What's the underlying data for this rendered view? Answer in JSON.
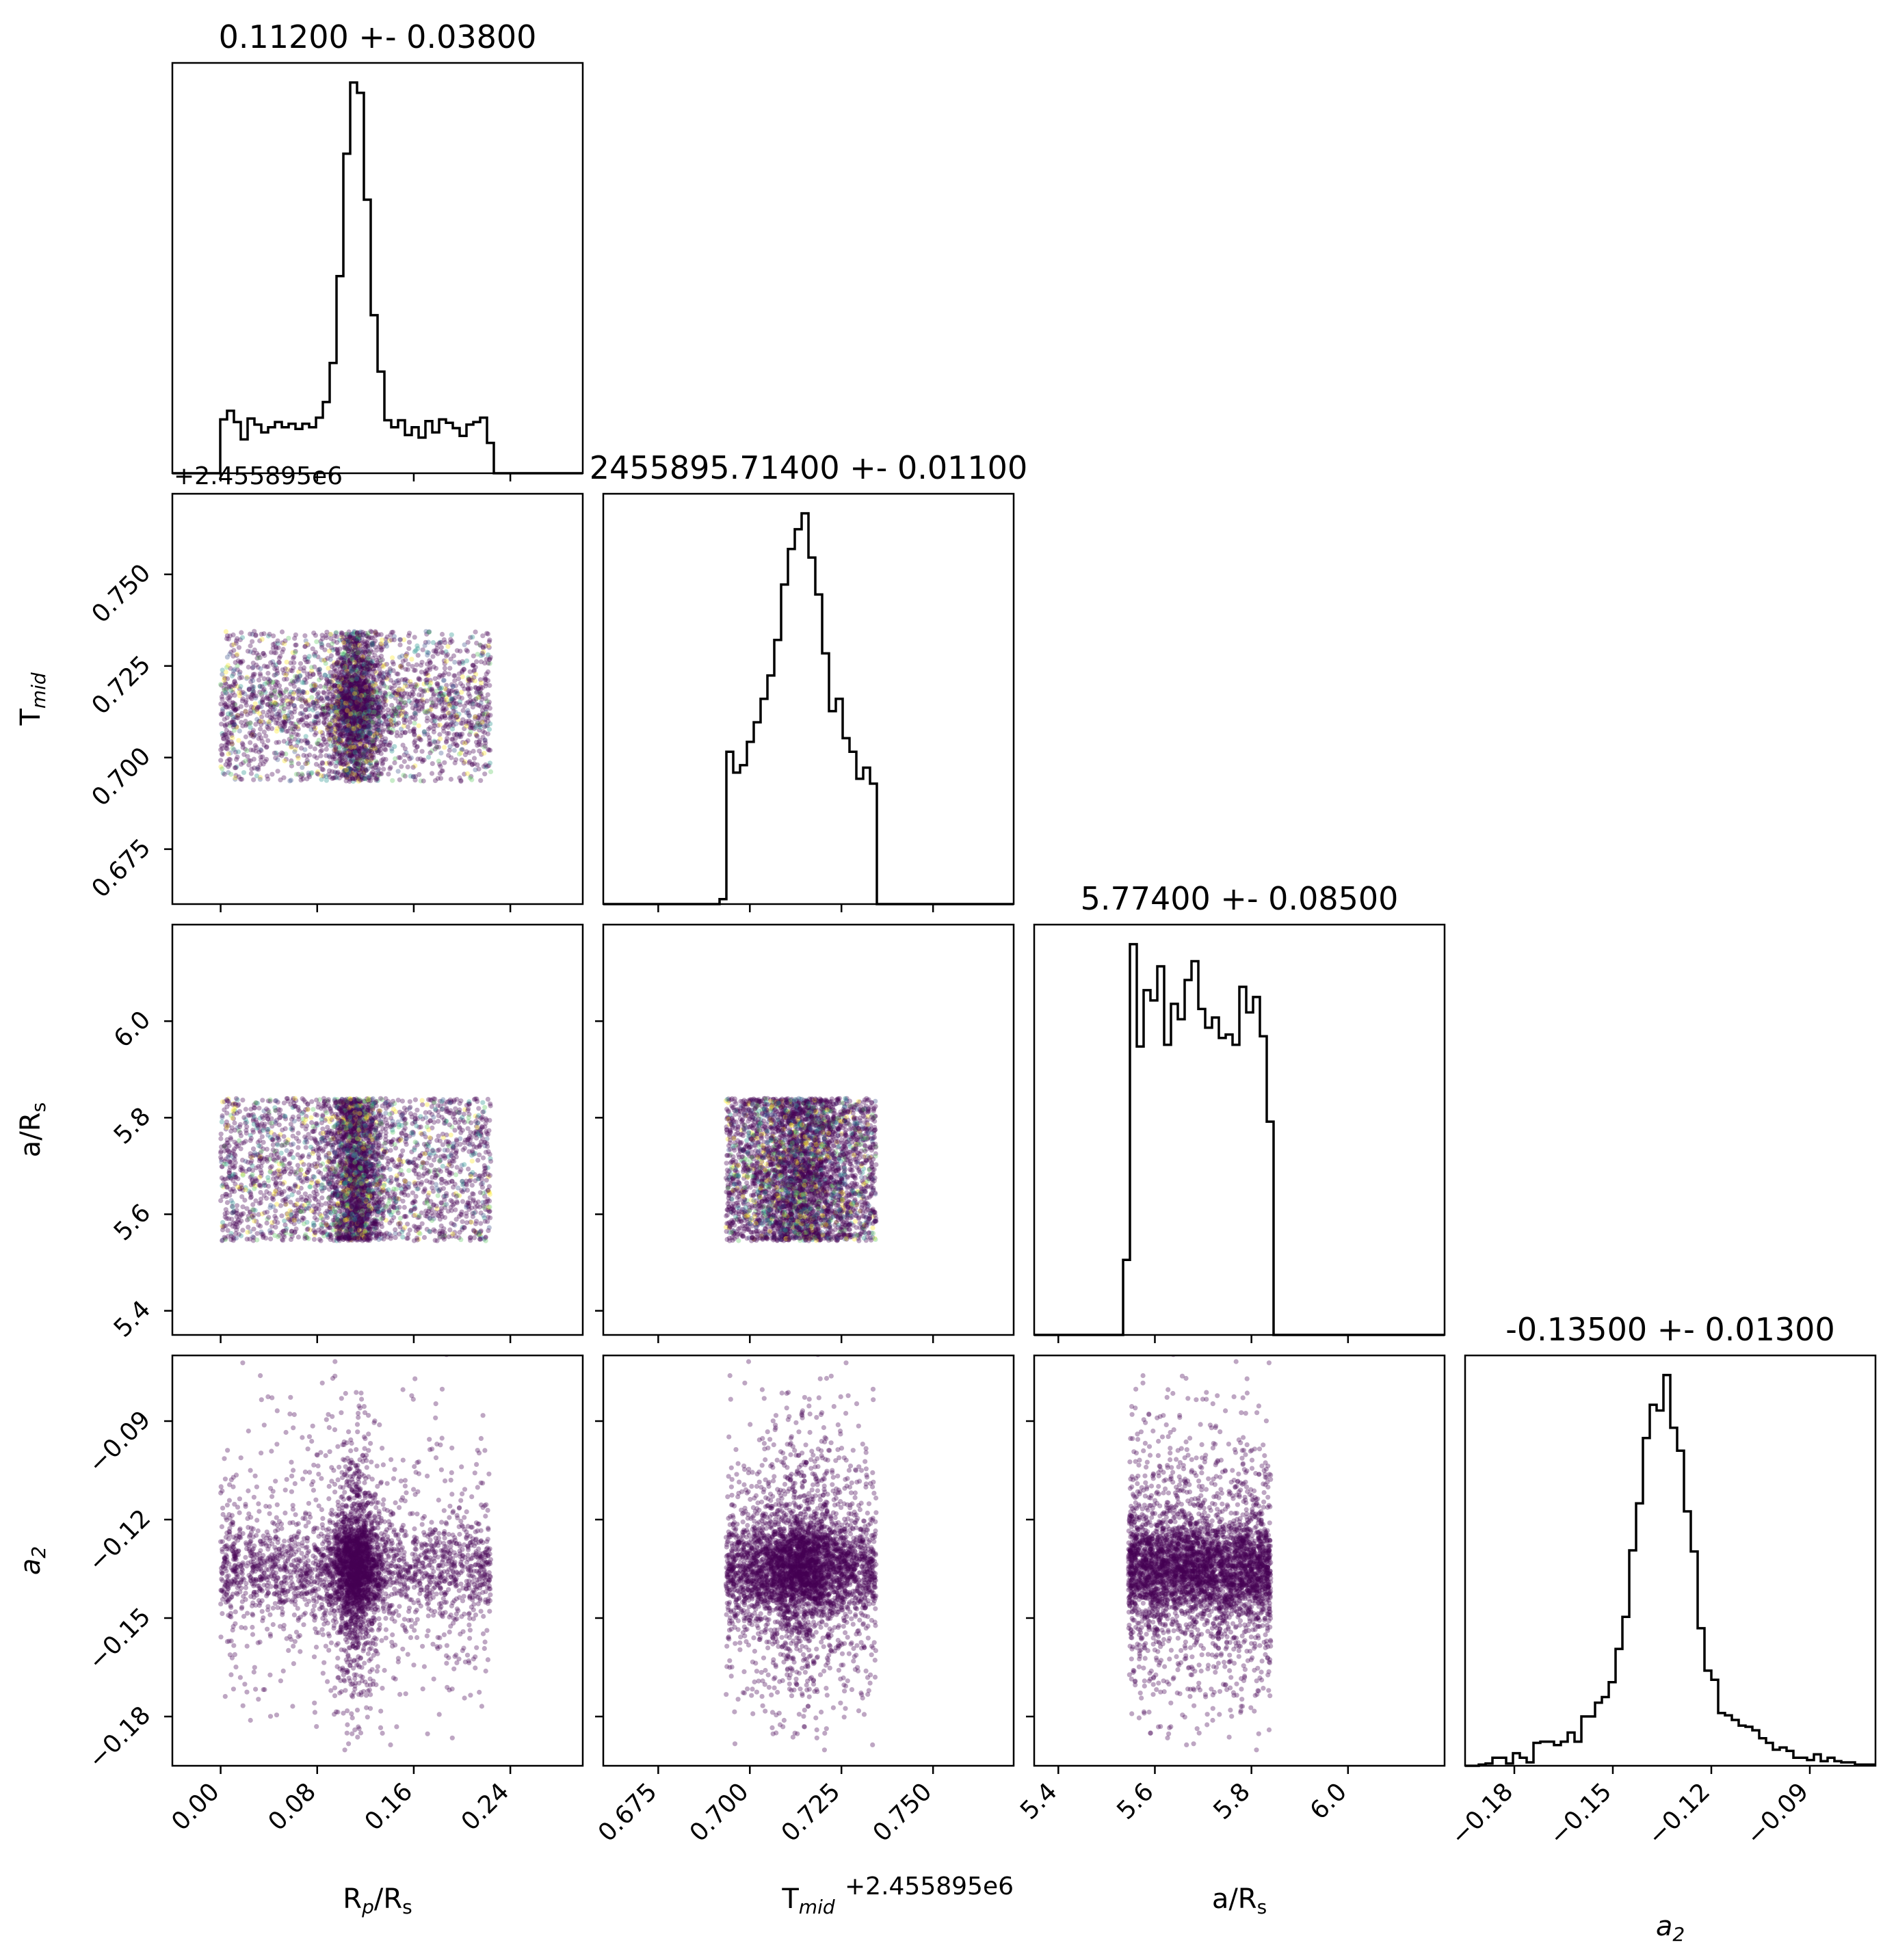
{
  "chart_data": {
    "type": "scatter",
    "variant": "corner-plot",
    "parameters": [
      {
        "id": "rp",
        "label_main": "R",
        "label_sub1": "p",
        "label_mid": "/R",
        "label_sub2": "s",
        "title": "0.11200 +- 0.03800",
        "median": 0.112,
        "sigma": 0.038,
        "range": [
          -0.04,
          0.3
        ],
        "uniform_range": [
          0.0,
          0.224
        ],
        "peak_sigma": 0.01,
        "peak_fraction": 0.45,
        "ticks": [
          0.0,
          0.08,
          0.16,
          0.24
        ],
        "tick_labels": [
          "0.00",
          "0.08",
          "0.16",
          "0.24"
        ],
        "offset_text": ""
      },
      {
        "id": "tmid",
        "label_main": "T",
        "label_sub1": "mid",
        "label_mid": "",
        "label_sub2": "",
        "title": "2455895.71400 +- 0.01100",
        "median": 0.714,
        "sigma": 0.011,
        "range": [
          0.66,
          0.772
        ],
        "uniform_range": [
          0.6935,
          0.7345
        ],
        "peak_sigma": 0.006,
        "peak_fraction": 0.4,
        "ticks": [
          0.675,
          0.7,
          0.725,
          0.75
        ],
        "tick_labels": [
          "0.675",
          "0.700",
          "0.725",
          "0.750"
        ],
        "offset_text": "+2.455895e6"
      },
      {
        "id": "ars",
        "label_main": "a/R",
        "label_sub1": "",
        "label_mid": "",
        "label_sub2": "s",
        "title": "5.77400 +- 0.08500",
        "median": 5.774,
        "sigma": 0.085,
        "range": [
          5.35,
          6.2
        ],
        "uniform_range": [
          5.545,
          5.84
        ],
        "peak_sigma": 0.02,
        "peak_fraction": 0.0,
        "ticks": [
          5.4,
          5.6,
          5.8,
          6.0
        ],
        "tick_labels": [
          "5.4",
          "5.6",
          "5.8",
          "6.0"
        ],
        "offset_text": ""
      },
      {
        "id": "a2",
        "label_main": "a",
        "label_sub1": "",
        "label_mid": "",
        "label_sub2": "2",
        "italic": true,
        "title": "-0.13500 +- 0.01300",
        "median": -0.135,
        "sigma": 0.013,
        "range": [
          -0.195,
          -0.07
        ],
        "uniform_range": [
          -0.195,
          -0.07
        ],
        "peak_sigma": 0.007,
        "peak_fraction": 0.55,
        "ticks": [
          -0.18,
          -0.15,
          -0.12,
          -0.09
        ],
        "tick_labels": [
          "−0.18",
          "−0.15",
          "−0.12",
          "−0.09"
        ],
        "offset_text": ""
      }
    ],
    "histogram_bins": 60,
    "samples_per_panel": 4000,
    "marker_colors": [
      "#440154",
      "#3b528b",
      "#21918c",
      "#5ec962",
      "#fde725"
    ],
    "dominant_color": "#440154",
    "histogram_color": "#000000",
    "grid": false
  }
}
